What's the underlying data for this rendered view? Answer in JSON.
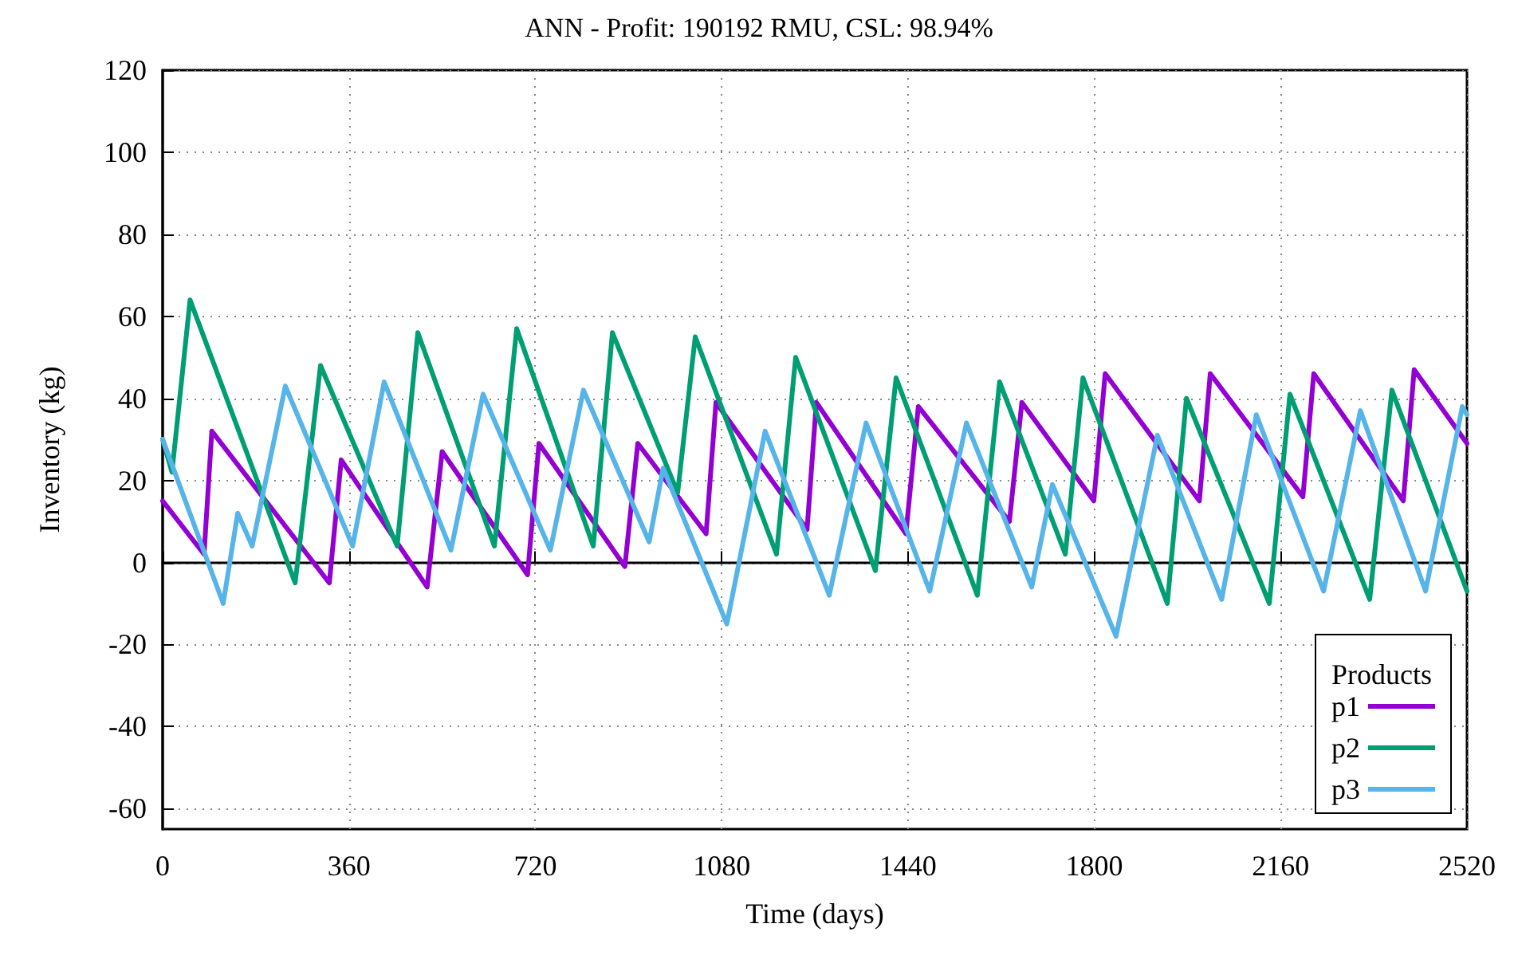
{
  "chart_data": {
    "type": "line",
    "title": "ANN - Profit: 190192 RMU, CSL: 98.94%",
    "xlabel": "Time (days)",
    "ylabel": "Inventory (kg)",
    "legend_title": "Products",
    "xlim": [
      0,
      2520
    ],
    "xticks": [
      0,
      360,
      720,
      1080,
      1440,
      1800,
      2160,
      2520
    ],
    "ylim": [
      -65,
      120
    ],
    "yticks": [
      -60,
      -40,
      -20,
      0,
      20,
      40,
      60,
      80,
      100,
      120
    ],
    "grid": true,
    "legend": "bottom right",
    "marker": "none",
    "line_style": "solid",
    "series": [
      {
        "name": "p1",
        "color": "#9400d3",
        "x": [
          0,
          80,
          95,
          322,
          345,
          511,
          540,
          705,
          727,
          893,
          918,
          1050,
          1069,
          1245,
          1263,
          1436,
          1460,
          1636,
          1660,
          1799,
          1821,
          2003,
          2024,
          2203,
          2224,
          2397,
          2418,
          2520
        ],
        "values": [
          15,
          2,
          32,
          -5,
          25,
          -6,
          27,
          -3,
          29,
          -1,
          29,
          7,
          39,
          8,
          39,
          7,
          38,
          10,
          39,
          15,
          46,
          15,
          46,
          16,
          46,
          15,
          47,
          29
        ]
      },
      {
        "name": "p2",
        "color": "#009e73",
        "x": [
          0,
          18,
          53,
          256,
          305,
          453,
          493,
          641,
          684,
          832,
          869,
          995,
          1029,
          1186,
          1223,
          1377,
          1417,
          1574,
          1617,
          1744,
          1778,
          1941,
          1978,
          2138,
          2178,
          2332,
          2375,
          2520
        ],
        "values": [
          30,
          22,
          64,
          -5,
          48,
          4,
          56,
          4,
          57,
          4,
          56,
          17,
          55,
          2,
          50,
          -2,
          45,
          -8,
          44,
          2,
          45,
          -10,
          40,
          -10,
          41,
          -9,
          42,
          -7
        ]
      },
      {
        "name": "p3",
        "color": "#56b4e9",
        "x": [
          0,
          117,
          145,
          173,
          237,
          367,
          428,
          557,
          619,
          749,
          813,
          940,
          967,
          1090,
          1164,
          1288,
          1359,
          1482,
          1553,
          1679,
          1719,
          1842,
          1922,
          2046,
          2113,
          2243,
          2314,
          2440,
          2511,
          2520
        ],
        "values": [
          30,
          -10,
          12,
          4,
          43,
          4,
          44,
          3,
          41,
          3,
          42,
          5,
          23,
          -15,
          32,
          -8,
          34,
          -7,
          34,
          -6,
          19,
          -18,
          31,
          -9,
          36,
          -7,
          37,
          -7,
          38,
          36
        ]
      }
    ]
  }
}
